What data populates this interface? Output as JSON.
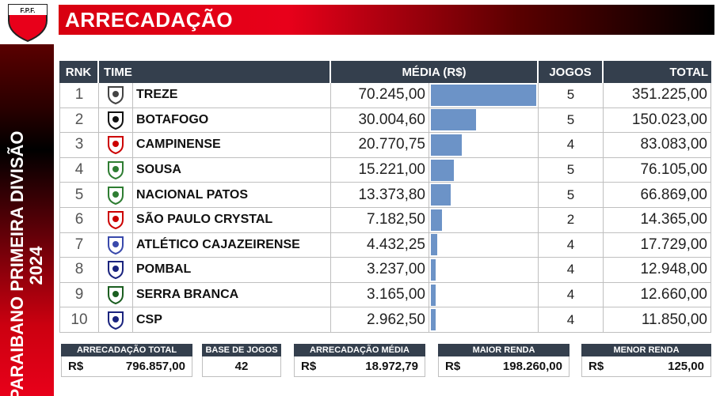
{
  "logo": {
    "text": "F.P.F."
  },
  "header": {
    "title": "ARRECADAÇÃO"
  },
  "sidebar": {
    "line1": "PARAIBANO PRIMEIRA DIVISÃO",
    "line2": "2024"
  },
  "table": {
    "columns": {
      "rnk": "RNK",
      "time": "TIME",
      "media": "MÉDIA (R$)",
      "jogos": "JOGOS",
      "total": "TOTAL"
    },
    "rows": [
      {
        "rnk": "1",
        "team": "TREZE",
        "avg": "70.245,00",
        "avg_value": 70245.0,
        "games": "5",
        "total": "351.225,00",
        "crest": "treze-crest-icon"
      },
      {
        "rnk": "2",
        "team": "BOTAFOGO",
        "avg": "30.004,60",
        "avg_value": 30004.6,
        "games": "5",
        "total": "150.023,00",
        "crest": "botafogo-crest-icon"
      },
      {
        "rnk": "3",
        "team": "CAMPINENSE",
        "avg": "20.770,75",
        "avg_value": 20770.75,
        "games": "4",
        "total": "83.083,00",
        "crest": "campinense-crest-icon"
      },
      {
        "rnk": "4",
        "team": "SOUSA",
        "avg": "15.221,00",
        "avg_value": 15221.0,
        "games": "5",
        "total": "76.105,00",
        "crest": "sousa-crest-icon"
      },
      {
        "rnk": "5",
        "team": "NACIONAL PATOS",
        "avg": "13.373,80",
        "avg_value": 13373.8,
        "games": "5",
        "total": "66.869,00",
        "crest": "nacional-patos-crest-icon"
      },
      {
        "rnk": "6",
        "team": "SÃO PAULO CRYSTAL",
        "avg": "7.182,50",
        "avg_value": 7182.5,
        "games": "2",
        "total": "14.365,00",
        "crest": "sao-paulo-crystal-crest-icon"
      },
      {
        "rnk": "7",
        "team": "ATLÉTICO CAJAZEIRENSE",
        "avg": "4.432,25",
        "avg_value": 4432.25,
        "games": "4",
        "total": "17.729,00",
        "crest": "atletico-cajazeirense-crest-icon"
      },
      {
        "rnk": "8",
        "team": "POMBAL",
        "avg": "3.237,00",
        "avg_value": 3237.0,
        "games": "4",
        "total": "12.948,00",
        "crest": "pombal-crest-icon"
      },
      {
        "rnk": "9",
        "team": "SERRA BRANCA",
        "avg": "3.165,00",
        "avg_value": 3165.0,
        "games": "4",
        "total": "12.660,00",
        "crest": "serra-branca-crest-icon"
      },
      {
        "rnk": "10",
        "team": "CSP",
        "avg": "2.962,50",
        "avg_value": 2962.5,
        "games": "4",
        "total": "11.850,00",
        "crest": "csp-crest-icon"
      }
    ],
    "bar_color": "#6c93c7"
  },
  "summary": {
    "total": {
      "label": "ARRECADAÇÃO TOTAL",
      "currency": "R$",
      "value": "796.857,00"
    },
    "base": {
      "label": "BASE DE JOGOS",
      "value": "42"
    },
    "avg": {
      "label": "ARRECADAÇÃO MÉDIA",
      "currency": "R$",
      "value": "18.972,79"
    },
    "max": {
      "label": "MAIOR RENDA",
      "currency": "R$",
      "value": "198.260,00"
    },
    "min": {
      "label": "MENOR RENDA",
      "currency": "R$",
      "value": "125,00"
    }
  },
  "colors": {
    "header_dark": "#343f4d",
    "accent_red": "#e8001a"
  }
}
